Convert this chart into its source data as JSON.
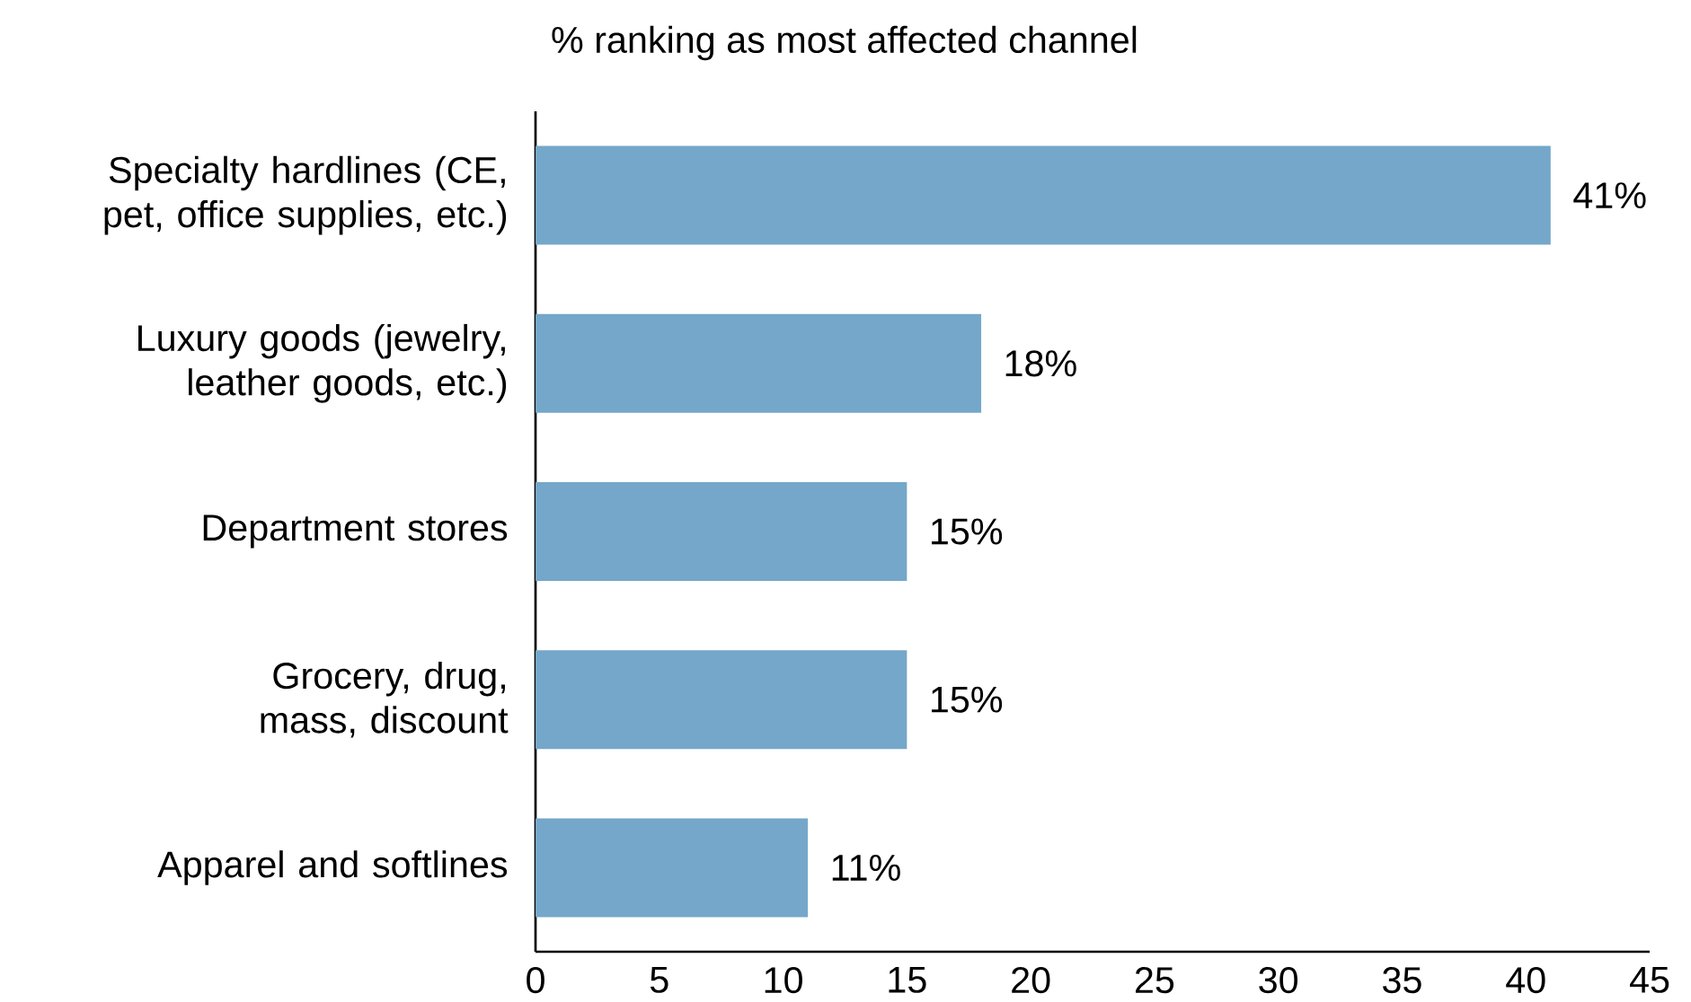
{
  "chart_data": {
    "type": "bar",
    "orientation": "horizontal",
    "title": "% ranking as most affected channel",
    "categories": [
      "Specialty hardlines (CE, pet, office supplies, etc.)",
      "Luxury goods (jewelry, leather goods, etc.)",
      "Department stores",
      "Grocery, drug, mass, discount",
      "Apparel and softlines"
    ],
    "values": [
      41,
      18,
      15,
      15,
      11
    ],
    "value_labels": [
      "41%",
      "18%",
      "15%",
      "15%",
      "11%"
    ],
    "color": "#74a7c9",
    "xlim": [
      0,
      45
    ],
    "xticks": [
      0,
      5,
      10,
      15,
      20,
      25,
      30,
      35,
      40,
      45
    ]
  }
}
